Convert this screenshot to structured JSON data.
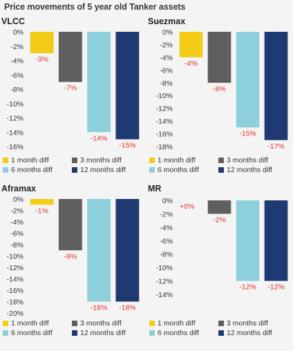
{
  "title": "Price movements of 5 year old Tanker assets",
  "colors": {
    "1 month diff": "#f2cc16",
    "3 months diff": "#5f5f5f",
    "6 months diff": "#8dd0dc",
    "12 months diff": "#1f3a73"
  },
  "chart_data": [
    {
      "type": "bar",
      "title": "VLCC",
      "ylim": [
        -16,
        0
      ],
      "ytick_step": 2,
      "yticks": [
        "0%",
        "-2%",
        "-4%",
        "-6%",
        "-8%",
        "-10%",
        "-12%",
        "-14%",
        "-16%"
      ],
      "categories": [
        "1 month diff",
        "3 months diff",
        "6 months diff",
        "12 months diff"
      ],
      "values": [
        -3,
        -7,
        -14,
        -15
      ],
      "labels": [
        "-3%",
        "-7%",
        "-14%",
        "-15%"
      ]
    },
    {
      "type": "bar",
      "title": "Suezmax",
      "ylim": [
        -18,
        0
      ],
      "ytick_step": 2,
      "yticks": [
        "0%",
        "-2%",
        "-4%",
        "-6%",
        "-8%",
        "-10%",
        "-12%",
        "-14%",
        "-16%",
        "-18%"
      ],
      "categories": [
        "1 month diff",
        "3 months diff",
        "6 months diff",
        "12 months diff"
      ],
      "values": [
        -4,
        -8,
        -15,
        -17
      ],
      "labels": [
        "-4%",
        "-8%",
        "-15%",
        "-17%"
      ]
    },
    {
      "type": "bar",
      "title": "Aframax",
      "ylim": [
        -20,
        0
      ],
      "ytick_step": 2,
      "yticks": [
        "0%",
        "-2%",
        "-4%",
        "-6%",
        "-8%",
        "-10%",
        "-12%",
        "-14%",
        "-16%",
        "-18%",
        "-20%"
      ],
      "categories": [
        "1 month diff",
        "3 months diff",
        "6 months diff",
        "12 months diff"
      ],
      "values": [
        -1,
        -9,
        -18,
        -18
      ],
      "labels": [
        "-1%",
        "-9%",
        "-18%",
        "-18%"
      ]
    },
    {
      "type": "bar",
      "title": "MR",
      "ylim": [
        -14,
        0
      ],
      "ytick_step": 2,
      "yticks": [
        "0%",
        "-2%",
        "-4%",
        "-6%",
        "-8%",
        "-10%",
        "-12%",
        "-14%"
      ],
      "categories": [
        "1 month diff",
        "3 months diff",
        "6 months diff",
        "12 months diff"
      ],
      "values": [
        0,
        -2,
        -12,
        -12
      ],
      "labels": [
        "+0%",
        "-2%",
        "-12%",
        "-12%"
      ]
    }
  ]
}
